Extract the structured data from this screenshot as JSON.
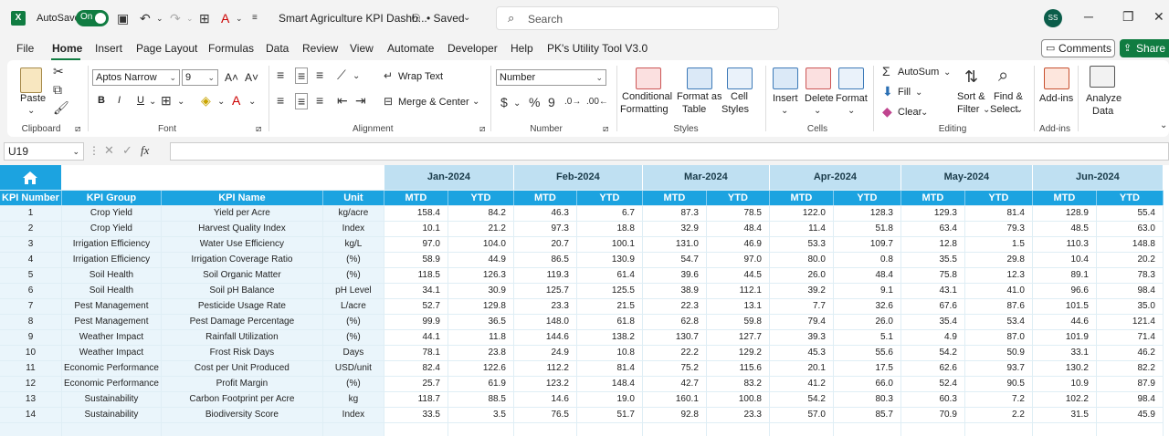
{
  "titlebar": {
    "autosave_label": "AutoSave",
    "autosave_state": "On",
    "doc_title": "Smart Agriculture KPI Dashb...",
    "saved_status": "• Saved",
    "search_placeholder": "Search",
    "user_initials": "SS"
  },
  "menu": {
    "items": [
      "File",
      "Home",
      "Insert",
      "Page Layout",
      "Formulas",
      "Data",
      "Review",
      "View",
      "Automate",
      "Developer",
      "Help",
      "PK's Utility Tool V3.0"
    ],
    "active": "Home",
    "comments_label": "Comments",
    "share_label": "Share"
  },
  "ribbon": {
    "clipboard": {
      "paste": "Paste",
      "label": "Clipboard"
    },
    "font": {
      "name": "Aptos Narrow",
      "size": "9",
      "label": "Font"
    },
    "alignment": {
      "wrap": "Wrap Text",
      "merge": "Merge & Center",
      "label": "Alignment"
    },
    "number": {
      "format": "Number",
      "label": "Number"
    },
    "styles": {
      "conditional": "Conditional",
      "formatting": "Formatting",
      "format_as": "Format as",
      "table": "Table",
      "cell": "Cell",
      "styles": "Styles",
      "label": "Styles"
    },
    "cells": {
      "insert": "Insert",
      "delete": "Delete",
      "format": "Format",
      "label": "Cells"
    },
    "editing": {
      "autosum": "AutoSum",
      "fill": "Fill",
      "clear": "Clear",
      "sort1": "Sort &",
      "sort2": "Filter",
      "find1": "Find &",
      "find2": "Select",
      "label": "Editing"
    },
    "addins": {
      "addins": "Add-ins",
      "label": "Add-ins"
    },
    "analyze": {
      "l1": "Analyze",
      "l2": "Data"
    }
  },
  "formula_bar": {
    "cell_ref": "U19",
    "fx": "fx",
    "value": ""
  },
  "sheet": {
    "months": [
      "Jan-2024",
      "Feb-2024",
      "Mar-2024",
      "Apr-2024",
      "May-2024",
      "Jun-2024"
    ],
    "headers": {
      "num": "KPI Number",
      "group": "KPI Group",
      "name": "KPI Name",
      "unit": "Unit",
      "mtd": "MTD",
      "ytd": "YTD"
    },
    "rows": [
      {
        "n": "1",
        "group": "Crop Yield",
        "name": "Yield per Acre",
        "unit": "kg/acre",
        "v": [
          "158.4",
          "84.2",
          "46.3",
          "6.7",
          "87.3",
          "78.5",
          "122.0",
          "128.3",
          "129.3",
          "81.4",
          "128.9",
          "55.4"
        ]
      },
      {
        "n": "2",
        "group": "Crop Yield",
        "name": "Harvest Quality Index",
        "unit": "Index",
        "v": [
          "10.1",
          "21.2",
          "97.3",
          "18.8",
          "32.9",
          "48.4",
          "11.4",
          "51.8",
          "63.4",
          "79.3",
          "48.5",
          "63.0"
        ]
      },
      {
        "n": "3",
        "group": "Irrigation Efficiency",
        "name": "Water Use Efficiency",
        "unit": "kg/L",
        "v": [
          "97.0",
          "104.0",
          "20.7",
          "100.1",
          "131.0",
          "46.9",
          "53.3",
          "109.7",
          "12.8",
          "1.5",
          "110.3",
          "148.8"
        ]
      },
      {
        "n": "4",
        "group": "Irrigation Efficiency",
        "name": "Irrigation Coverage Ratio",
        "unit": "(%)",
        "v": [
          "58.9",
          "44.9",
          "86.5",
          "130.9",
          "54.7",
          "97.0",
          "80.0",
          "0.8",
          "35.5",
          "29.8",
          "10.4",
          "20.2"
        ]
      },
      {
        "n": "5",
        "group": "Soil Health",
        "name": "Soil Organic Matter",
        "unit": "(%)",
        "v": [
          "118.5",
          "126.3",
          "119.3",
          "61.4",
          "39.6",
          "44.5",
          "26.0",
          "48.4",
          "75.8",
          "12.3",
          "89.1",
          "78.3"
        ]
      },
      {
        "n": "6",
        "group": "Soil Health",
        "name": "Soil pH Balance",
        "unit": "pH Level",
        "v": [
          "34.1",
          "30.9",
          "125.7",
          "125.5",
          "38.9",
          "112.1",
          "39.2",
          "9.1",
          "43.1",
          "41.0",
          "96.6",
          "98.4"
        ]
      },
      {
        "n": "7",
        "group": "Pest Management",
        "name": "Pesticide Usage Rate",
        "unit": "L/acre",
        "v": [
          "52.7",
          "129.8",
          "23.3",
          "21.5",
          "22.3",
          "13.1",
          "7.7",
          "32.6",
          "67.6",
          "87.6",
          "101.5",
          "35.0"
        ]
      },
      {
        "n": "8",
        "group": "Pest Management",
        "name": "Pest Damage Percentage",
        "unit": "(%)",
        "v": [
          "99.9",
          "36.5",
          "148.0",
          "61.8",
          "62.8",
          "59.8",
          "79.4",
          "26.0",
          "35.4",
          "53.4",
          "44.6",
          "121.4"
        ]
      },
      {
        "n": "9",
        "group": "Weather Impact",
        "name": "Rainfall Utilization",
        "unit": "(%)",
        "v": [
          "44.1",
          "11.8",
          "144.6",
          "138.2",
          "130.7",
          "127.7",
          "39.3",
          "5.1",
          "4.9",
          "87.0",
          "101.9",
          "71.4"
        ]
      },
      {
        "n": "10",
        "group": "Weather Impact",
        "name": "Frost Risk Days",
        "unit": "Days",
        "v": [
          "78.1",
          "23.8",
          "24.9",
          "10.8",
          "22.2",
          "129.2",
          "45.3",
          "55.6",
          "54.2",
          "50.9",
          "33.1",
          "46.2"
        ]
      },
      {
        "n": "11",
        "group": "Economic Performance",
        "name": "Cost per Unit Produced",
        "unit": "USD/unit",
        "v": [
          "82.4",
          "122.6",
          "112.2",
          "81.4",
          "75.2",
          "115.6",
          "20.1",
          "17.5",
          "62.6",
          "93.7",
          "130.2",
          "82.2"
        ]
      },
      {
        "n": "12",
        "group": "Economic Performance",
        "name": "Profit Margin",
        "unit": "(%)",
        "v": [
          "25.7",
          "61.9",
          "123.2",
          "148.4",
          "42.7",
          "83.2",
          "41.2",
          "66.0",
          "52.4",
          "90.5",
          "10.9",
          "87.9"
        ]
      },
      {
        "n": "13",
        "group": "Sustainability",
        "name": "Carbon Footprint per Acre",
        "unit": "kg",
        "v": [
          "118.7",
          "88.5",
          "14.6",
          "19.0",
          "160.1",
          "100.8",
          "54.2",
          "80.3",
          "60.3",
          "7.2",
          "102.2",
          "98.4"
        ]
      },
      {
        "n": "14",
        "group": "Sustainability",
        "name": "Biodiversity Score",
        "unit": "Index",
        "v": [
          "33.5",
          "3.5",
          "76.5",
          "51.7",
          "92.8",
          "23.3",
          "57.0",
          "85.7",
          "70.9",
          "2.2",
          "31.5",
          "45.9"
        ]
      }
    ]
  }
}
